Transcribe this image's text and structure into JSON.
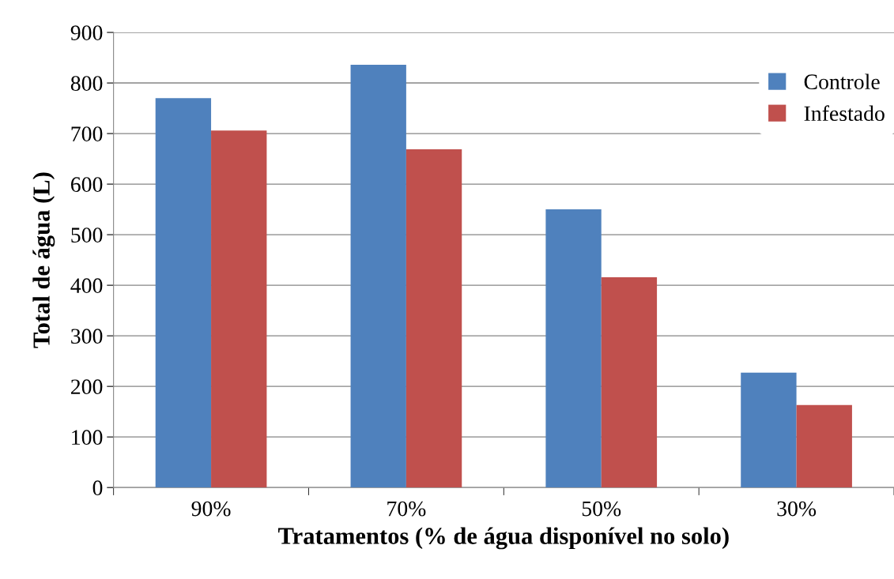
{
  "chart_data": {
    "type": "bar",
    "xlabel": "Tratamentos (% de água disponível no solo)",
    "ylabel": "Total de água (L)",
    "categories": [
      "90%",
      "70%",
      "50%",
      "30%"
    ],
    "series": [
      {
        "name": "Controle",
        "color": "#4f81bd",
        "values": [
          770,
          836,
          550,
          227
        ]
      },
      {
        "name": "Infestado",
        "color": "#c0504d",
        "values": [
          706,
          669,
          416,
          163
        ]
      }
    ],
    "ylim": [
      0,
      900
    ],
    "yticks": [
      0,
      100,
      200,
      300,
      400,
      500,
      600,
      700,
      800,
      900
    ],
    "grid": "y",
    "legend": "top right"
  }
}
